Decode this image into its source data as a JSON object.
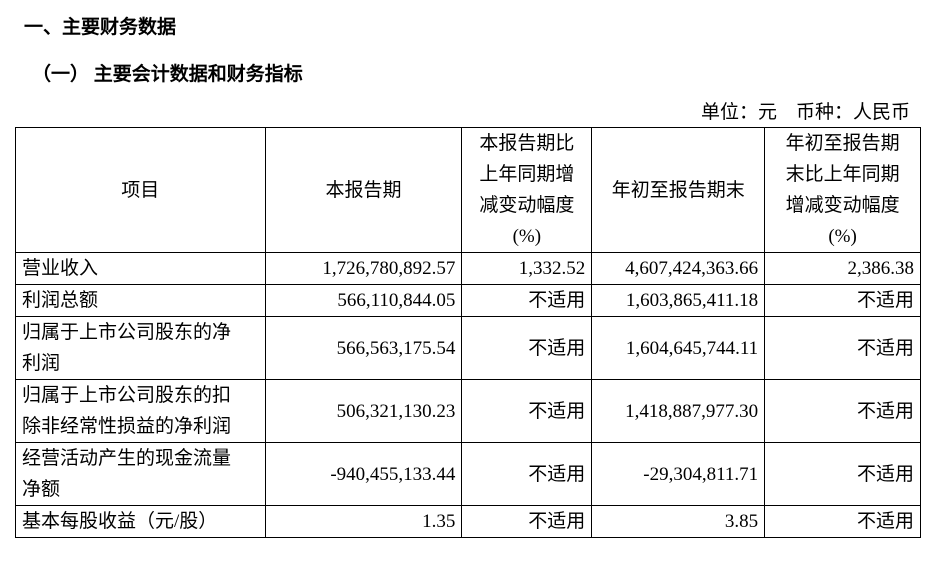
{
  "header": {
    "title": "一、主要财务数据",
    "subtitle": "（一） 主要会计数据和财务指标",
    "unit": "单位：元　币种：人民币"
  },
  "table": {
    "columns": [
      "项目",
      "本报告期",
      "本报告期比上年同期增减变动幅度(%)",
      "年初至报告期末",
      "年初至报告期末比上年同期增减变动幅度(%)"
    ],
    "rows": [
      [
        "营业收入",
        "1,726,780,892.57",
        "1,332.52",
        "4,607,424,363.66",
        "2,386.38"
      ],
      [
        "利润总额",
        "566,110,844.05",
        "不适用",
        "1,603,865,411.18",
        "不适用"
      ],
      [
        "归属于上市公司股东的净利润",
        "566,563,175.54",
        "不适用",
        "1,604,645,744.11",
        "不适用"
      ],
      [
        "归属于上市公司股东的扣除非经常性损益的净利润",
        "506,321,130.23",
        "不适用",
        "1,418,887,977.30",
        "不适用"
      ],
      [
        "经营活动产生的现金流量净额",
        "-940,455,133.44",
        "不适用",
        "-29,304,811.71",
        "不适用"
      ],
      [
        "基本每股收益（元/股）",
        "1.35",
        "不适用",
        "3.85",
        "不适用"
      ]
    ]
  }
}
